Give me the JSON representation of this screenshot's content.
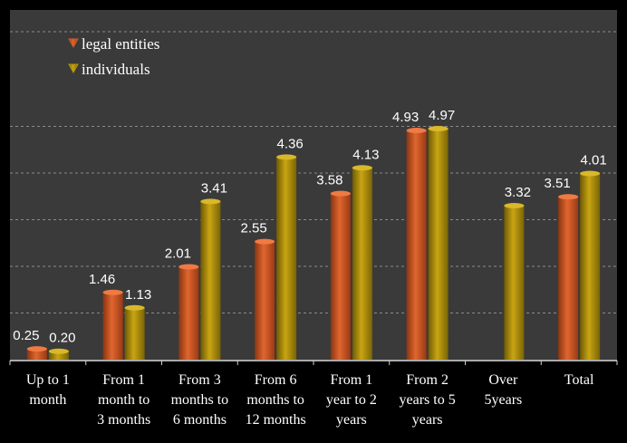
{
  "chart_data": {
    "type": "bar",
    "title": "",
    "xlabel": "",
    "ylabel": "",
    "categories": [
      [
        "Up to 1",
        "month"
      ],
      [
        "From 1",
        "month to",
        "3 months"
      ],
      [
        "From 3",
        "months to",
        "6 months"
      ],
      [
        "From 6",
        "months to",
        "12 months"
      ],
      [
        "From 1",
        "year to 2",
        "years"
      ],
      [
        "From 2",
        "years to 5",
        "years"
      ],
      [
        "Over",
        "5years"
      ],
      [
        "Total"
      ]
    ],
    "series": [
      {
        "name": "legal entities",
        "color": "#d0592a",
        "values": [
          0.25,
          1.46,
          2.01,
          2.55,
          3.58,
          4.93,
          null,
          3.51
        ],
        "labels": [
          "0.25",
          "1.46",
          "2.01",
          "2.55",
          "3.58",
          "4.93",
          "",
          "3.51"
        ]
      },
      {
        "name": "individuals",
        "color": "#b8960a",
        "values": [
          0.2,
          1.13,
          3.41,
          4.36,
          4.13,
          4.97,
          3.32,
          4.01
        ],
        "labels": [
          "0.20",
          "1.13",
          "3.41",
          "4.36",
          "4.13",
          "4.97",
          "3.32",
          "4.01"
        ]
      }
    ],
    "ylim": [
      0,
      5.25
    ],
    "grid": true,
    "legend_position": "top-left",
    "background": "#3a3a3a"
  }
}
